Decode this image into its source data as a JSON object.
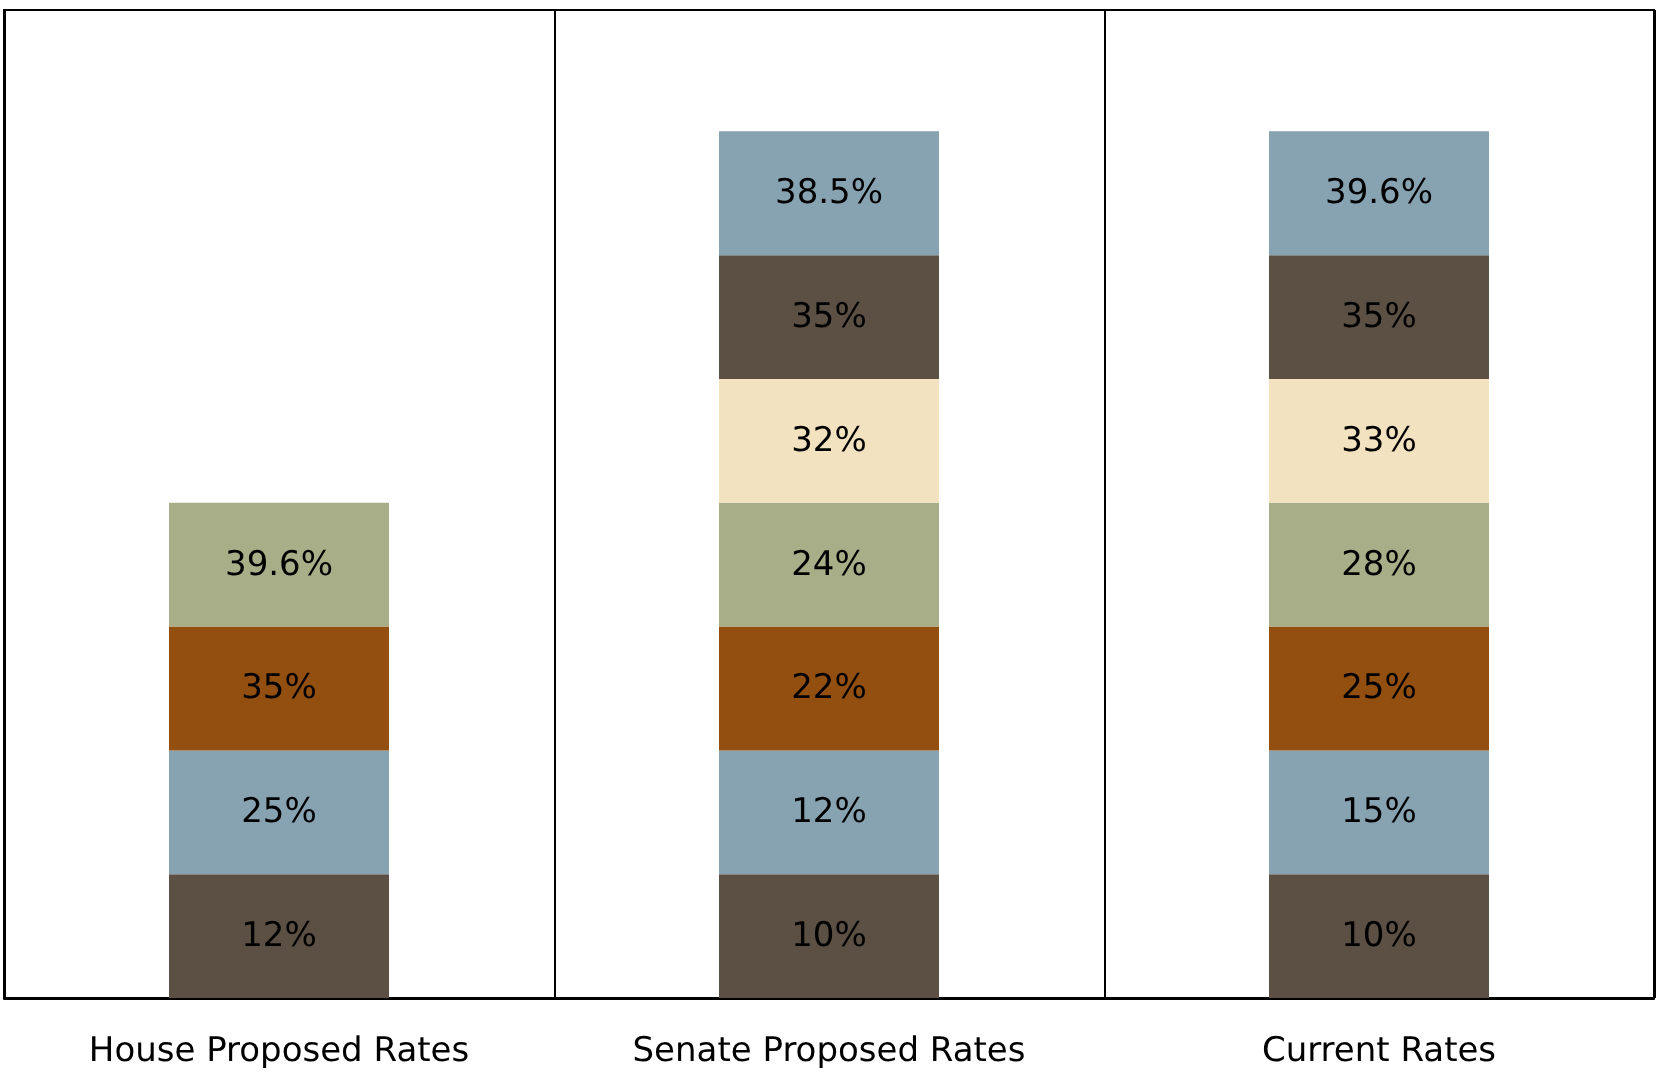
{
  "chart_data": {
    "type": "other",
    "categories": [
      "House Proposed Rates",
      "Senate Proposed Rates",
      "Current Rates"
    ],
    "series": [
      {
        "color": "#5c5044",
        "values": [
          12,
          10,
          10
        ],
        "value_labels": [
          "12%",
          "10%",
          "10%"
        ]
      },
      {
        "color": "#87a2b1",
        "values": [
          25,
          12,
          15
        ],
        "value_labels": [
          "25%",
          "12%",
          "15%"
        ]
      },
      {
        "color": "#934f0f",
        "values": [
          35,
          22,
          25
        ],
        "value_labels": [
          "35%",
          "22%",
          "25%"
        ]
      },
      {
        "color": "#a8ae88",
        "values": [
          39.6,
          24,
          28
        ],
        "value_labels": [
          "39.6%",
          "24%",
          "28%"
        ]
      },
      {
        "color": "#f2e2bf",
        "values": [
          null,
          32,
          33
        ],
        "value_labels": [
          null,
          "32%",
          "33%"
        ]
      },
      {
        "color": "#5c5044",
        "values": [
          null,
          35,
          35
        ],
        "value_labels": [
          null,
          "35%",
          "35%"
        ]
      },
      {
        "color": "#87a2b1",
        "values": [
          null,
          38.5,
          39.6
        ],
        "value_labels": [
          null,
          "38.5%",
          "39.6%"
        ]
      }
    ]
  }
}
